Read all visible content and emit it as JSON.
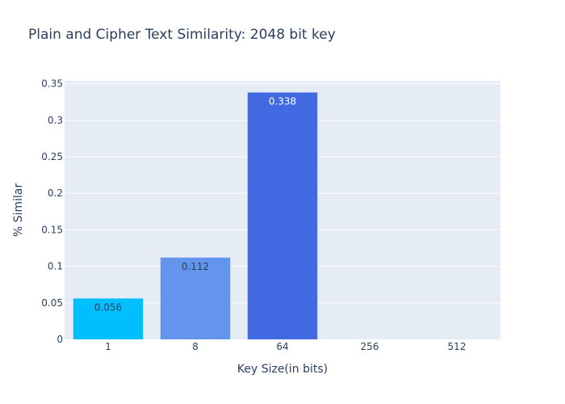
{
  "chart_data": {
    "type": "bar",
    "title": "Plain and Cipher Text Similarity: 2048 bit key",
    "xlabel": "Key Size(in bits)",
    "ylabel": "% Similar",
    "categories": [
      "1",
      "8",
      "64",
      "256",
      "512"
    ],
    "values": [
      0.056,
      0.112,
      0.338,
      0,
      0
    ],
    "value_labels": [
      "0.056",
      "0.112",
      "0.338",
      "",
      ""
    ],
    "bar_colors": [
      "#00bfff",
      "#6495ed",
      "#4169e1",
      "#4169e1",
      "#4169e1"
    ],
    "label_colors": [
      "#2a3f5f",
      "#2a3f5f",
      "#ffffff",
      "#ffffff",
      "#ffffff"
    ],
    "ylim": [
      0,
      0.354
    ],
    "yticks": [
      0,
      0.05,
      0.1,
      0.15,
      0.2,
      0.25,
      0.3,
      0.35
    ],
    "ytick_labels": [
      "0",
      "0.05",
      "0.1",
      "0.15",
      "0.2",
      "0.25",
      "0.3",
      "0.35"
    ],
    "grid": true,
    "plot_bgcolor": "#e5ecf6",
    "gridcolor": "#ffffff",
    "font_color": "#2a3f5f"
  }
}
